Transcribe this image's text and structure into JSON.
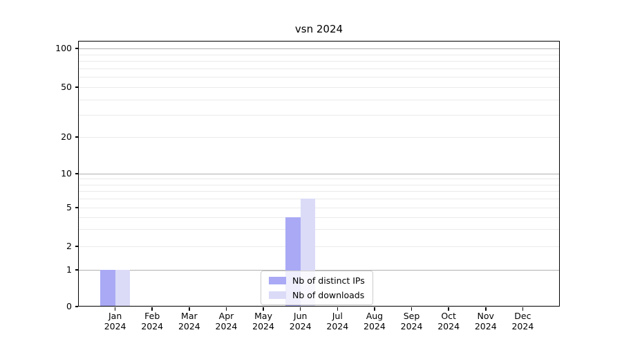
{
  "chart_data": {
    "type": "bar",
    "title": "vsn 2024",
    "categories": [
      {
        "month": "Jan",
        "year": "2024"
      },
      {
        "month": "Feb",
        "year": "2024"
      },
      {
        "month": "Mar",
        "year": "2024"
      },
      {
        "month": "Apr",
        "year": "2024"
      },
      {
        "month": "May",
        "year": "2024"
      },
      {
        "month": "Jun",
        "year": "2024"
      },
      {
        "month": "Jul",
        "year": "2024"
      },
      {
        "month": "Aug",
        "year": "2024"
      },
      {
        "month": "Sep",
        "year": "2024"
      },
      {
        "month": "Oct",
        "year": "2024"
      },
      {
        "month": "Nov",
        "year": "2024"
      },
      {
        "month": "Dec",
        "year": "2024"
      }
    ],
    "series": [
      {
        "name": "Nb of distinct IPs",
        "color": "#a9a9f5",
        "values": [
          1,
          0,
          0,
          0,
          0,
          4,
          0,
          0,
          0,
          0,
          0,
          0
        ]
      },
      {
        "name": "Nb of downloads",
        "color": "#dbdbf8",
        "values": [
          1,
          0,
          0,
          0,
          0,
          6,
          0,
          0,
          0,
          0,
          0,
          0
        ]
      }
    ],
    "y_axis": {
      "tick_values": [
        0,
        1,
        2,
        5,
        10,
        20,
        50,
        100
      ],
      "major_gridlines": [
        1,
        10,
        100
      ],
      "minor_gridlines": [
        2,
        3,
        4,
        5,
        6,
        7,
        8,
        9,
        20,
        30,
        40,
        50,
        60,
        70,
        80,
        90
      ],
      "scale": "log-like with zero baseline"
    },
    "legend": {
      "position": "lower center"
    },
    "colors": {
      "major_grid": "#b0b0b0",
      "minor_grid": "#eaeaea",
      "axis": "#000000",
      "background": "#ffffff"
    }
  }
}
